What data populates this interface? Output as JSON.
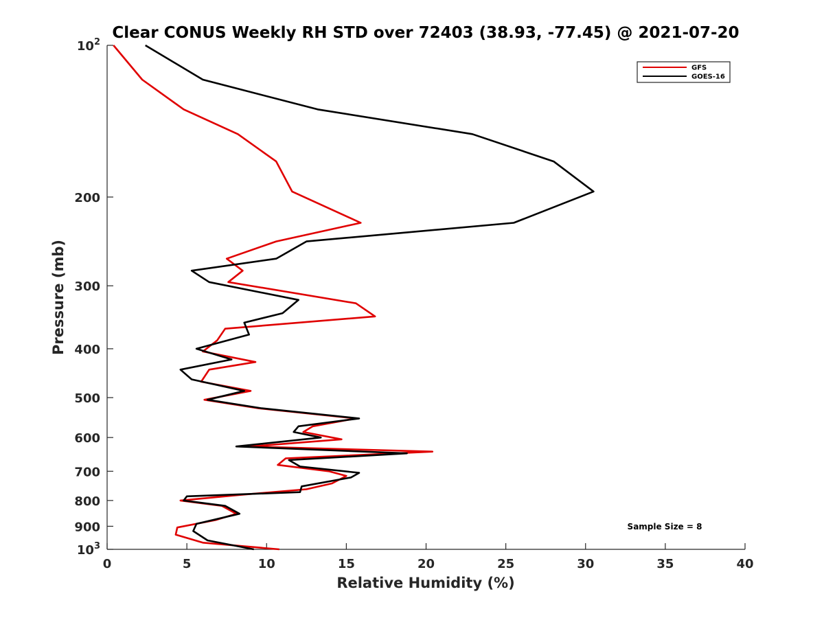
{
  "chart_data": {
    "type": "line",
    "title": "Clear CONUS Weekly RH STD over 72403 (38.93, -77.45) @ 2021-07-20",
    "xlabel": "Relative Humidity (%)",
    "ylabel": "Pressure (mb)",
    "xlim": [
      0,
      40
    ],
    "ylim": [
      100,
      1000
    ],
    "yscale": "log",
    "y_reversed": true,
    "x_ticks": [
      "0",
      "5",
      "10",
      "15",
      "20",
      "25",
      "30",
      "35",
      "40"
    ],
    "x_tick_values": [
      0,
      5,
      10,
      15,
      20,
      25,
      30,
      35,
      40
    ],
    "y_ticks": [
      {
        "value": 100,
        "base": "10",
        "exp": "2"
      },
      {
        "value": 200,
        "label": "200"
      },
      {
        "value": 300,
        "label": "300"
      },
      {
        "value": 400,
        "label": "400"
      },
      {
        "value": 500,
        "label": "500"
      },
      {
        "value": 600,
        "label": "600"
      },
      {
        "value": 700,
        "label": "700"
      },
      {
        "value": 800,
        "label": "800"
      },
      {
        "value": 900,
        "label": "900"
      },
      {
        "value": 1000,
        "base": "10",
        "exp": "3"
      }
    ],
    "legend_position": "top-right",
    "annotation": "Sample Size = 8",
    "series": [
      {
        "name": "GFS",
        "color": "#e00000",
        "points": [
          [
            0.4,
            100
          ],
          [
            2.2,
            117
          ],
          [
            4.8,
            134
          ],
          [
            8.2,
            150
          ],
          [
            10.6,
            170
          ],
          [
            11.6,
            195
          ],
          [
            15.9,
            225
          ],
          [
            10.6,
            245
          ],
          [
            7.5,
            265
          ],
          [
            8.5,
            280
          ],
          [
            7.6,
            295
          ],
          [
            15.6,
            325
          ],
          [
            16.8,
            345
          ],
          [
            7.4,
            365
          ],
          [
            6.9,
            385
          ],
          [
            6.0,
            405
          ],
          [
            9.3,
            425
          ],
          [
            6.4,
            440
          ],
          [
            5.9,
            465
          ],
          [
            9.0,
            485
          ],
          [
            6.1,
            505
          ],
          [
            9.5,
            525
          ],
          [
            15.6,
            550
          ],
          [
            12.9,
            570
          ],
          [
            12.3,
            585
          ],
          [
            14.7,
            605
          ],
          [
            9.0,
            625
          ],
          [
            20.4,
            640
          ],
          [
            11.2,
            660
          ],
          [
            10.7,
            680
          ],
          [
            13.9,
            700
          ],
          [
            15.0,
            715
          ],
          [
            14.1,
            740
          ],
          [
            12.5,
            760
          ],
          [
            8.3,
            780
          ],
          [
            4.6,
            800
          ],
          [
            7.2,
            820
          ],
          [
            8.1,
            850
          ],
          [
            6.8,
            875
          ],
          [
            4.4,
            905
          ],
          [
            4.3,
            935
          ],
          [
            6.0,
            970
          ],
          [
            10.8,
            1000
          ]
        ]
      },
      {
        "name": "GOES-16",
        "color": "#000000",
        "points": [
          [
            2.4,
            100
          ],
          [
            6.0,
            117
          ],
          [
            13.2,
            134
          ],
          [
            22.9,
            150
          ],
          [
            28.0,
            170
          ],
          [
            30.5,
            195
          ],
          [
            25.5,
            225
          ],
          [
            12.5,
            245
          ],
          [
            10.6,
            265
          ],
          [
            5.3,
            280
          ],
          [
            6.4,
            295
          ],
          [
            12.0,
            320
          ],
          [
            11.0,
            340
          ],
          [
            8.6,
            355
          ],
          [
            8.9,
            375
          ],
          [
            5.6,
            400
          ],
          [
            7.8,
            420
          ],
          [
            4.6,
            440
          ],
          [
            5.3,
            460
          ],
          [
            8.6,
            485
          ],
          [
            6.3,
            505
          ],
          [
            9.7,
            525
          ],
          [
            15.8,
            550
          ],
          [
            12.0,
            570
          ],
          [
            11.7,
            585
          ],
          [
            13.4,
            600
          ],
          [
            8.1,
            625
          ],
          [
            18.8,
            645
          ],
          [
            11.4,
            665
          ],
          [
            12.1,
            685
          ],
          [
            15.8,
            705
          ],
          [
            15.3,
            720
          ],
          [
            12.2,
            750
          ],
          [
            12.1,
            770
          ],
          [
            5.0,
            785
          ],
          [
            4.8,
            800
          ],
          [
            7.4,
            820
          ],
          [
            8.3,
            850
          ],
          [
            5.6,
            890
          ],
          [
            5.4,
            920
          ],
          [
            6.3,
            960
          ],
          [
            9.2,
            1000
          ]
        ]
      }
    ]
  }
}
